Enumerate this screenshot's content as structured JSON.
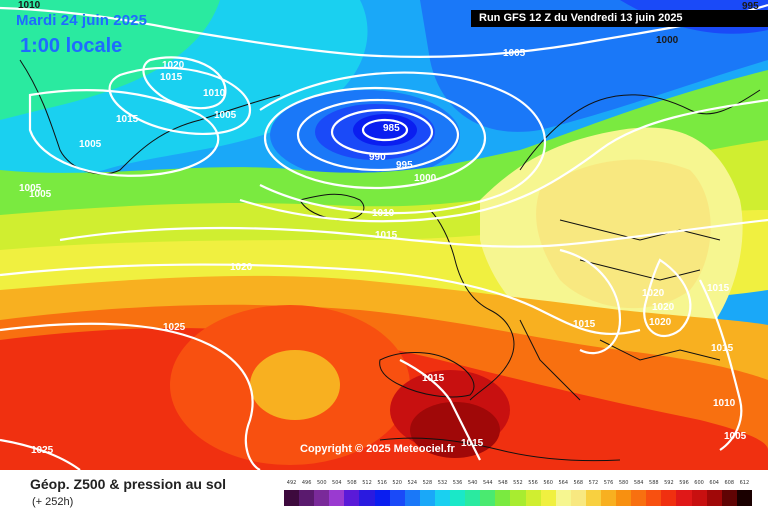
{
  "header": {
    "date": "Mardi 24 juin 2025",
    "time": "1:00 locale",
    "run": "Run GFS 12 Z du Vendredi 13 juin 2025"
  },
  "copyright": "Copyright © 2025 Meteociel.fr",
  "footer": {
    "title": "Géop. Z500 & pression au sol",
    "subtitle": "(+ 252h)"
  },
  "isobar_labels": [
    {
      "text": "1010"
    },
    {
      "text": "995"
    },
    {
      "text": "1000"
    },
    {
      "text": "1005"
    },
    {
      "text": "1020"
    },
    {
      "text": "1015"
    },
    {
      "text": "1010"
    },
    {
      "text": "1005"
    },
    {
      "text": "1015"
    },
    {
      "text": "1005"
    },
    {
      "text": "985"
    },
    {
      "text": "990"
    },
    {
      "text": "995"
    },
    {
      "text": "1000"
    },
    {
      "text": "1005"
    },
    {
      "text": "1005"
    },
    {
      "text": "1010"
    },
    {
      "text": "1015"
    },
    {
      "text": "1020"
    },
    {
      "text": "1025"
    },
    {
      "text": "1015"
    },
    {
      "text": "1020"
    },
    {
      "text": "1020"
    },
    {
      "text": "1020"
    },
    {
      "text": "1015"
    },
    {
      "text": "1015"
    },
    {
      "text": "1015"
    },
    {
      "text": "1010"
    },
    {
      "text": "1005"
    },
    {
      "text": "1015"
    },
    {
      "text": "1025"
    }
  ],
  "scale": {
    "labels": [
      "492",
      "496",
      "500",
      "504",
      "508",
      "512",
      "516",
      "520",
      "524",
      "528",
      "532",
      "536",
      "540",
      "544",
      "548",
      "552",
      "556",
      "560",
      "564",
      "568",
      "572",
      "576",
      "580",
      "584",
      "588",
      "592",
      "596",
      "600",
      "604",
      "608",
      "612"
    ],
    "colors": [
      "#3d0a3d",
      "#5a1a6e",
      "#7a2a9a",
      "#9a3ad0",
      "#5a1ad8",
      "#2a1ae0",
      "#0a1ef0",
      "#1a4af8",
      "#1a78f8",
      "#1aa8f8",
      "#1ad0f0",
      "#1ae8c8",
      "#2aeaa0",
      "#4aea70",
      "#7aea40",
      "#a8ec30",
      "#d0ee30",
      "#f0f040",
      "#f6f690",
      "#f8e880",
      "#f8d040",
      "#f8b020",
      "#f89010",
      "#f87010",
      "#f85010",
      "#f03010",
      "#e01818",
      "#c81010",
      "#a00808",
      "#600404",
      "#1a0000"
    ]
  }
}
